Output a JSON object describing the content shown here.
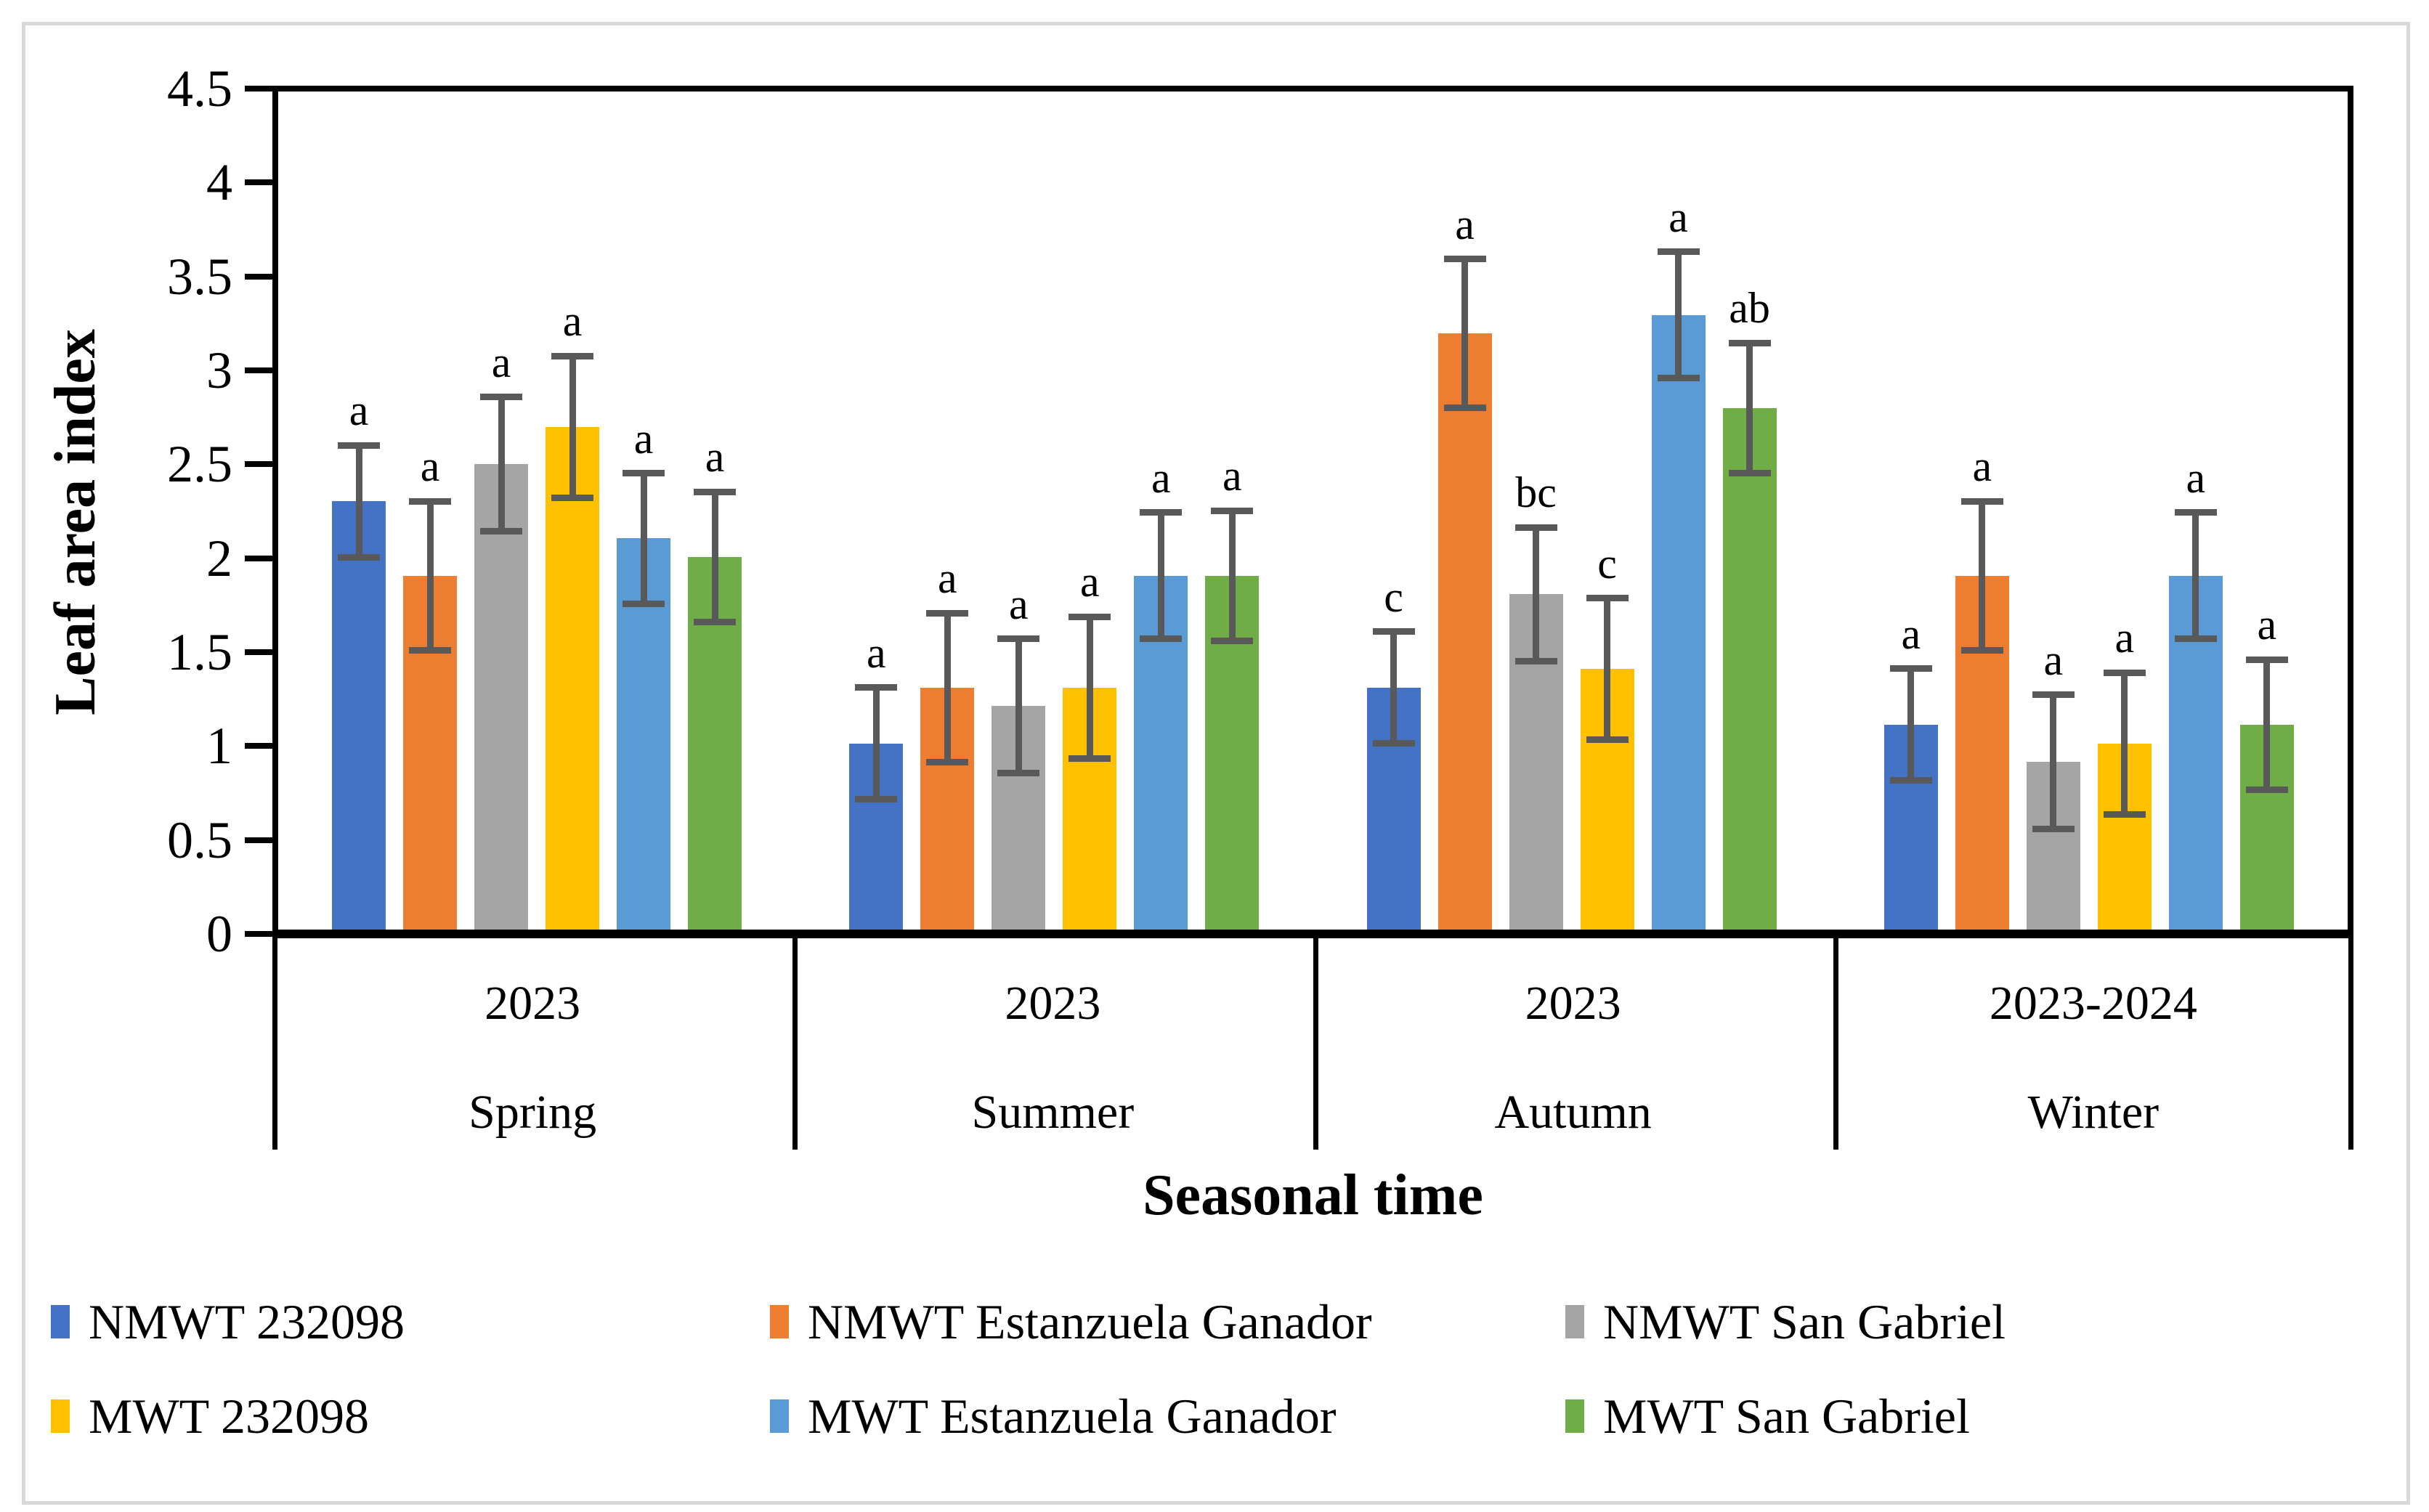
{
  "chart_data": {
    "type": "bar",
    "title": "",
    "ylabel": "Leaf area index",
    "xlabel": "Seasonal time",
    "ylim": [
      0,
      4.5
    ],
    "ytick_step": 0.5,
    "yticks": [
      4.5,
      4,
      3.5,
      3,
      2.5,
      2,
      1.5,
      1,
      0.5,
      0
    ],
    "grid": false,
    "legend_position": "bottom",
    "error_bar_color": "#595959",
    "axis_color": "#000000",
    "figure_border_color": "#d9d9d9",
    "series": [
      {
        "name": "NMWT 232098",
        "color": "#4472C4"
      },
      {
        "name": "NMWT Estanzuela Ganador",
        "color": "#ED7D31"
      },
      {
        "name": "NMWT San Gabriel",
        "color": "#A5A5A5"
      },
      {
        "name": "MWT 232098",
        "color": "#FFC000"
      },
      {
        "name": "MWT Estanzuela Ganador",
        "color": "#5B9BD5"
      },
      {
        "name": "MWT San Gabriel",
        "color": "#70AD47"
      }
    ],
    "groups": [
      {
        "year": "2023",
        "season": "Spring",
        "values": [
          2.3,
          1.9,
          2.5,
          2.7,
          2.1,
          2.0
        ],
        "errors": [
          0.3,
          0.4,
          0.36,
          0.38,
          0.35,
          0.35
        ],
        "letters": [
          "a",
          "a",
          "a",
          "a",
          "a",
          "a"
        ]
      },
      {
        "year": "2023",
        "season": "Summer",
        "values": [
          1.0,
          1.3,
          1.2,
          1.3,
          1.9,
          1.9
        ],
        "errors": [
          0.3,
          0.4,
          0.36,
          0.38,
          0.34,
          0.35
        ],
        "letters": [
          "a",
          "a",
          "a",
          "a",
          "a",
          "a"
        ]
      },
      {
        "year": "2023",
        "season": "Autumn",
        "values": [
          1.3,
          3.2,
          1.8,
          1.4,
          3.3,
          2.8
        ],
        "errors": [
          0.3,
          0.4,
          0.36,
          0.38,
          0.34,
          0.35
        ],
        "letters": [
          "c",
          "a",
          "bc",
          "c",
          "a",
          "ab"
        ]
      },
      {
        "year": "2023-2024",
        "season": "Winter",
        "values": [
          1.1,
          1.9,
          0.9,
          1.0,
          1.9,
          1.1
        ],
        "errors": [
          0.3,
          0.4,
          0.36,
          0.38,
          0.34,
          0.35
        ],
        "letters": [
          "a",
          "a",
          "a",
          "a",
          "a",
          "a"
        ]
      }
    ]
  }
}
